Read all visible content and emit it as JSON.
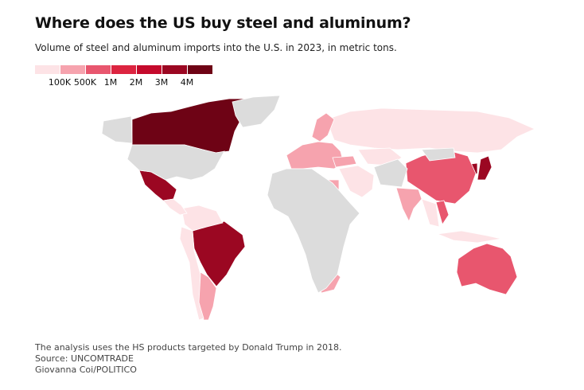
{
  "header": {
    "title": "Where does the US buy steel and aluminum?",
    "subtitle": "Volume of steel and aluminum imports into the U.S. in 2023, in metric tons."
  },
  "legend": {
    "colors": [
      "#fde3e6",
      "#f6a3ae",
      "#e8566e",
      "#dc2440",
      "#c40a2c",
      "#9b0722",
      "#6e0315"
    ],
    "labels": [
      "100K",
      "500K",
      "1M",
      "2M",
      "3M",
      "4M"
    ],
    "no_data_color": "#dcdcdc"
  },
  "chart_data": {
    "type": "choropleth",
    "title": "Where does the US buy steel and aluminum?",
    "unit": "metric tons",
    "year": 2023,
    "bins": [
      "<100K",
      "100K-500K",
      "500K-1M",
      "1M-2M",
      "2M-3M",
      "3M-4M",
      ">4M"
    ],
    "regions": [
      {
        "region": "Canada",
        "bin": 6
      },
      {
        "region": "Mexico",
        "bin": 5
      },
      {
        "region": "Brazil",
        "bin": 5
      },
      {
        "region": "Japan",
        "bin": 5
      },
      {
        "region": "South Korea",
        "bin": 5
      },
      {
        "region": "China",
        "bin": 2
      },
      {
        "region": "Australia",
        "bin": 2
      },
      {
        "region": "Germany",
        "bin": 3
      },
      {
        "region": "India",
        "bin": 1
      },
      {
        "region": "Argentina",
        "bin": 1
      },
      {
        "region": "South Africa",
        "bin": 1
      },
      {
        "region": "Algeria",
        "bin": 1
      },
      {
        "region": "Egypt",
        "bin": 1
      },
      {
        "region": "Vietnam",
        "bin": 2
      },
      {
        "region": "Russia",
        "bin": 0
      },
      {
        "region": "Europe",
        "bin": 1
      },
      {
        "region": "Scandinavia",
        "bin": 1
      },
      {
        "region": "Turkey",
        "bin": 1
      },
      {
        "region": "Middle East",
        "bin": 0
      },
      {
        "region": "Kazakhstan",
        "bin": 0
      },
      {
        "region": "Colombia-Venezuela",
        "bin": 0
      },
      {
        "region": "Peru-Chile",
        "bin": 0
      },
      {
        "region": "Central America",
        "bin": 0
      },
      {
        "region": "Southeast Asia",
        "bin": 0
      },
      {
        "region": "Indonesia",
        "bin": 0
      },
      {
        "region": "United States",
        "bin": null
      },
      {
        "region": "Alaska",
        "bin": null
      },
      {
        "region": "Greenland",
        "bin": null
      },
      {
        "region": "Africa",
        "bin": null
      },
      {
        "region": "Iran-Central Asia",
        "bin": null
      },
      {
        "region": "Mongolia",
        "bin": null
      }
    ]
  },
  "footer": {
    "note": "The analysis uses the HS products targeted by Donald Trump in 2018.",
    "source": "Source: UNCOMTRADE",
    "credit": "Giovanna Coi/POLITICO"
  }
}
